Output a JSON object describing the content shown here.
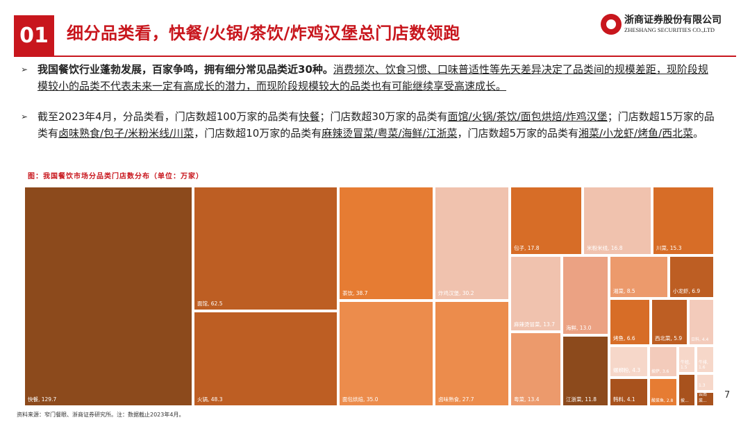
{
  "header": {
    "number": "01",
    "title": "细分品类看，快餐/火锅/茶饮/炸鸡汉堡总门店数领跑",
    "logo_cn": "浙商证券股份有限公司",
    "logo_en": "ZHESHANG SECURITIES CO.,LTD"
  },
  "bullets": [
    {
      "arrow": "➢",
      "segments": [
        {
          "text": "我国餐饮行业蓬勃发展，百家争鸣，拥有细分常见品类近30种。",
          "style": "strong"
        },
        {
          "text": "消费频次、饮食习惯、口味普适性等先天差异决定了品类间的规模差距，现阶段规模较小的品类不代表未来一定有高成长的潜力，而现阶段规模较大的品类也有可能继续享受高速成长。",
          "style": "u"
        }
      ]
    },
    {
      "arrow": "➢",
      "segments": [
        {
          "text": "截至2023年4月，分品类看，门店数超100万家的品类有",
          "style": ""
        },
        {
          "text": "快餐",
          "style": "u"
        },
        {
          "text": "；门店数超30万家的品类有",
          "style": ""
        },
        {
          "text": "面馆/火锅/茶饮/面包烘焙/炸鸡汉堡",
          "style": "u"
        },
        {
          "text": "；门店数超15万家的品类有",
          "style": ""
        },
        {
          "text": "卤味熟食/包子/米粉米线/川菜",
          "style": "u"
        },
        {
          "text": "，门店数超10万家的品类有",
          "style": ""
        },
        {
          "text": "麻辣烫冒菜/粤菜/海鲜/江浙菜",
          "style": "u"
        },
        {
          "text": "，门店数超5万家的品类有",
          "style": ""
        },
        {
          "text": "湘菜/小龙虾/烤鱼/西北菜",
          "style": "u"
        },
        {
          "text": "。",
          "style": ""
        }
      ]
    }
  ],
  "figure": {
    "caption": "图：我国餐饮市场分品类门店数分布（单位：万家）"
  },
  "chart_data": {
    "type": "treemap",
    "unit": "万家",
    "items": [
      {
        "name": "快餐",
        "value": 129.7,
        "label": "快餐, 129.7",
        "color": "#8c4a1c"
      },
      {
        "name": "面馆",
        "value": 62.5,
        "label": "面馆, 62.5",
        "color": "#bd5e23"
      },
      {
        "name": "火锅",
        "value": 48.3,
        "label": "火锅, 48.3",
        "color": "#bd5e23"
      },
      {
        "name": "茶饮",
        "value": 38.7,
        "label": "茶饮, 38.7",
        "color": "#e67c33"
      },
      {
        "name": "面包烘焙",
        "value": 35.0,
        "label": "面包烘焙, 35.0",
        "color": "#ec8c4c"
      },
      {
        "name": "炸鸡汉堡",
        "value": 30.2,
        "label": "炸鸡汉堡, 30.2",
        "color": "#f0c2ae"
      },
      {
        "name": "卤味熟食",
        "value": 27.7,
        "label": "卤味熟食, 27.7",
        "color": "#ec8c4c"
      },
      {
        "name": "包子",
        "value": 17.8,
        "label": "包子, 17.8",
        "color": "#d76d27"
      },
      {
        "name": "米粉米线",
        "value": 16.8,
        "label": "米粉米线, 16.8",
        "color": "#f0c2ae"
      },
      {
        "name": "川菜",
        "value": 15.3,
        "label": "川菜, 15.3",
        "color": "#d76d27"
      },
      {
        "name": "麻辣烫冒菜",
        "value": 13.7,
        "label": "麻辣烫冒菜, 13.7",
        "color": "#f0c2ae"
      },
      {
        "name": "粤菜",
        "value": 13.4,
        "label": "粤菜, 13.4",
        "color": "#ec9a6c"
      },
      {
        "name": "海鲜",
        "value": 13.0,
        "label": "海鲜, 13.0",
        "color": "#eba283"
      },
      {
        "name": "江浙菜",
        "value": 11.8,
        "label": "江浙菜, 11.8",
        "color": "#8c4a1c"
      },
      {
        "name": "湘菜",
        "value": 8.5,
        "label": "湘菜, 8.5",
        "color": "#ec9a6c"
      },
      {
        "name": "小龙虾",
        "value": 6.9,
        "label": "小龙虾, 6.9",
        "color": "#bd5e23"
      },
      {
        "name": "烤鱼",
        "value": 6.6,
        "label": "烤鱼, 6.6",
        "color": "#d76d27"
      },
      {
        "name": "西北菜",
        "value": 5.9,
        "label": "西北菜, 5.9",
        "color": "#bd5e23"
      },
      {
        "name": "日料",
        "value": 4.4,
        "label": "日料, 4.4",
        "color": "#f3cbbb"
      },
      {
        "name": "螺蛳粉",
        "value": 4.3,
        "label": "螺蛳粉, 4.3",
        "color": "#f6d7c9"
      },
      {
        "name": "韩料",
        "value": 4.1,
        "label": "韩料, 4.1",
        "color": "#a8521d"
      },
      {
        "name": "披萨",
        "value": 3.6,
        "label": "披萨, 3.6",
        "color": "#f3cbbb"
      },
      {
        "name": "酸菜鱼",
        "value": 2.8,
        "label": "酸菜鱼, 2.8",
        "color": "#e67c33"
      },
      {
        "name": "牛排",
        "value": 1.6,
        "label": "牛排, 1.6",
        "color": "#f6d7c9"
      },
      {
        "name": "牛蛙",
        "value": 1.5,
        "label": "牛蛙, 1.5",
        "color": "#f6d7c9"
      },
      {
        "name": "其他1",
        "value": 1.3,
        "label": "1.3",
        "color": "#f6d7c9"
      },
      {
        "name": "披萨2",
        "value": null,
        "label": "披...",
        "color": "#a8521d"
      },
      {
        "name": "云南菜",
        "value": null,
        "label": "云南菜...",
        "color": "#a8521d"
      }
    ]
  },
  "footer": {
    "source": "资料来源：窄门餐眼、浙商证券研究所。注：数据截止2023年4月。",
    "page": "7"
  }
}
